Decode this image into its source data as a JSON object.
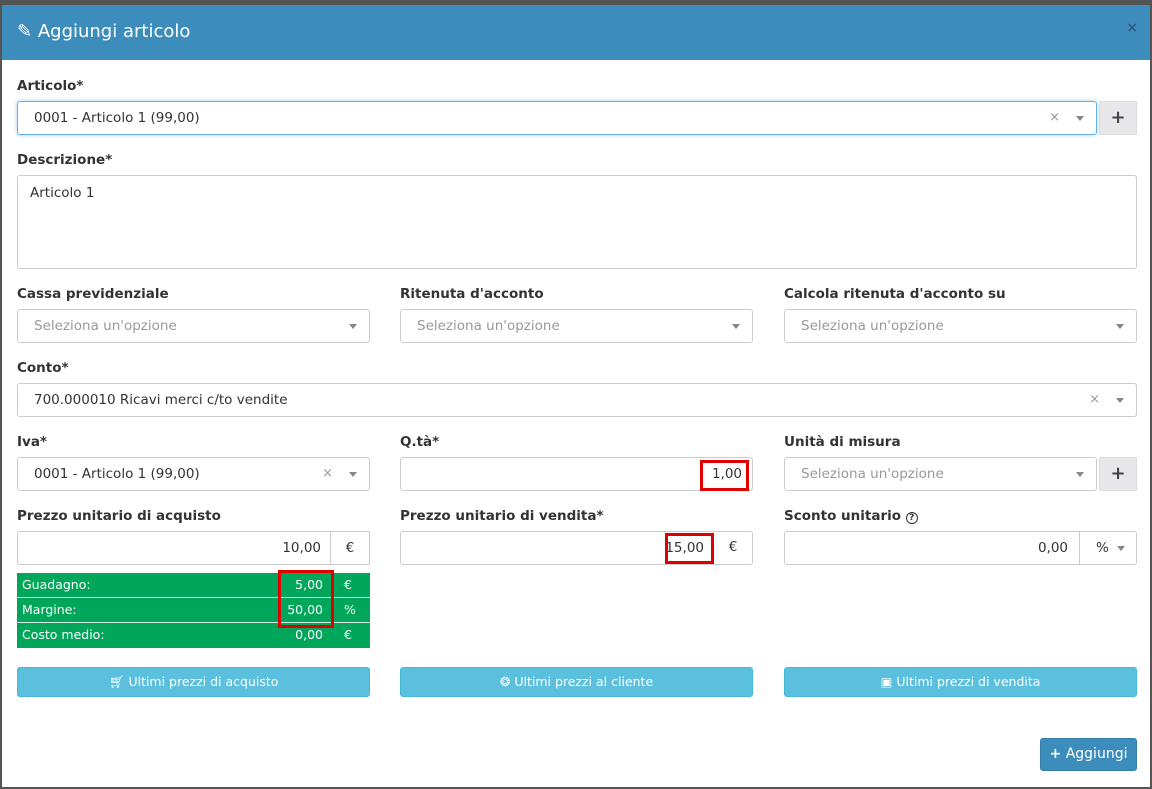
{
  "modal": {
    "title": "Aggiungi articolo",
    "title_icon": "pencil-icon",
    "close": "×"
  },
  "articolo": {
    "label": "Articolo*",
    "value": "0001 - Articolo 1 (99,00)",
    "add": "+"
  },
  "descrizione": {
    "label": "Descrizione*",
    "value": "Articolo 1"
  },
  "cassa": {
    "label": "Cassa previdenziale",
    "placeholder": "Seleziona un'opzione"
  },
  "ritenuta": {
    "label": "Ritenuta d'acconto",
    "placeholder": "Seleziona un'opzione"
  },
  "calcola": {
    "label": "Calcola ritenuta d'acconto su",
    "placeholder": "Seleziona un'opzione"
  },
  "conto": {
    "label": "Conto*",
    "value": "700.000010 Ricavi merci c/to vendite"
  },
  "iva": {
    "label": "Iva*",
    "value": "0001 - Articolo 1 (99,00)"
  },
  "qta": {
    "label": "Q.tà*",
    "value": "1,00"
  },
  "um": {
    "label": "Unità di misura",
    "placeholder": "Seleziona un'opzione",
    "add": "+"
  },
  "acquisto": {
    "label": "Prezzo unitario di acquisto",
    "value": "10,00",
    "currency": "€"
  },
  "vendita": {
    "label": "Prezzo unitario di vendita*",
    "value": "15,00",
    "currency": "€"
  },
  "sconto": {
    "label": "Sconto unitario",
    "help": "?",
    "value": "0,00",
    "unit": "%"
  },
  "summary": [
    {
      "k": "Guadagno:",
      "v": "5,00",
      "c": "€"
    },
    {
      "k": "Margine:",
      "v": "50,00",
      "c": "%"
    },
    {
      "k": "Costo medio:",
      "v": "0,00",
      "c": "€"
    }
  ],
  "buttons": {
    "acquisto": "Ultimi prezzi di acquisto",
    "cliente": "Ultimi prezzi al cliente",
    "vendita": "Ultimi prezzi di vendita",
    "aggiungi": "Aggiungi"
  },
  "colors": {
    "header": "#3c8dbc",
    "summary": "#00a65a",
    "info_button": "#5bc0de",
    "highlight": "#e00000"
  }
}
